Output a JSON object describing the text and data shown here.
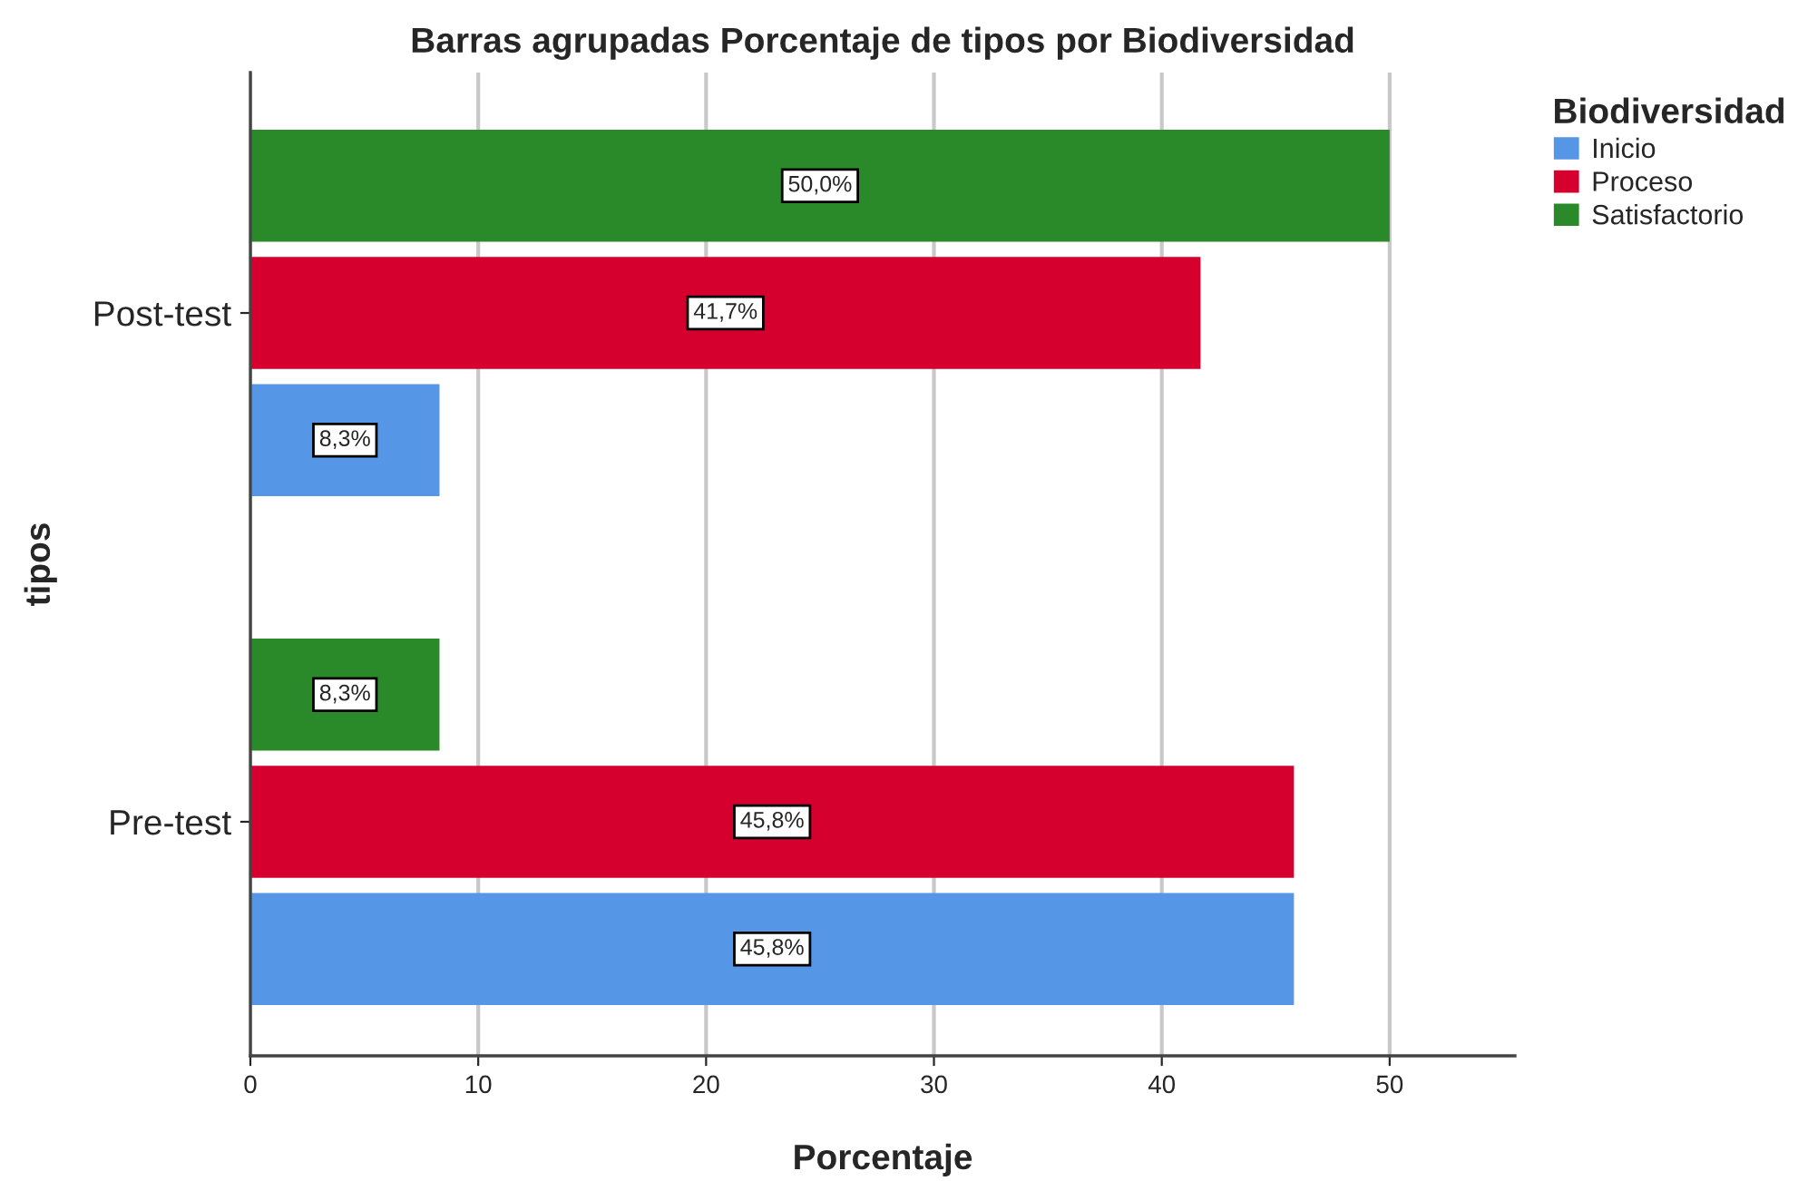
{
  "chart_data": {
    "type": "bar",
    "orientation": "horizontal",
    "title": "Barras agrupadas Porcentaje de tipos por Biodiversidad",
    "xlabel": "Porcentaje",
    "ylabel": "tipos",
    "legend_title": "Biodiversidad",
    "categories": [
      "Post-test",
      "Pre-test"
    ],
    "series": [
      {
        "name": "Inicio",
        "color": "#5596e6",
        "values": [
          8.3,
          45.8
        ],
        "value_labels": [
          "8,3%",
          "45,8%"
        ]
      },
      {
        "name": "Proceso",
        "color": "#d6002f",
        "values": [
          41.7,
          45.8
        ],
        "value_labels": [
          "41,7%",
          "45,8%"
        ]
      },
      {
        "name": "Satisfactorio",
        "color": "#2a8a2a",
        "values": [
          50.0,
          8.3
        ],
        "value_labels": [
          "50,0%",
          "8,3%"
        ]
      }
    ],
    "xlim": [
      0,
      55.5
    ],
    "xticks": [
      0,
      10,
      20,
      30,
      40,
      50
    ],
    "grid": "x",
    "legend": "right"
  }
}
